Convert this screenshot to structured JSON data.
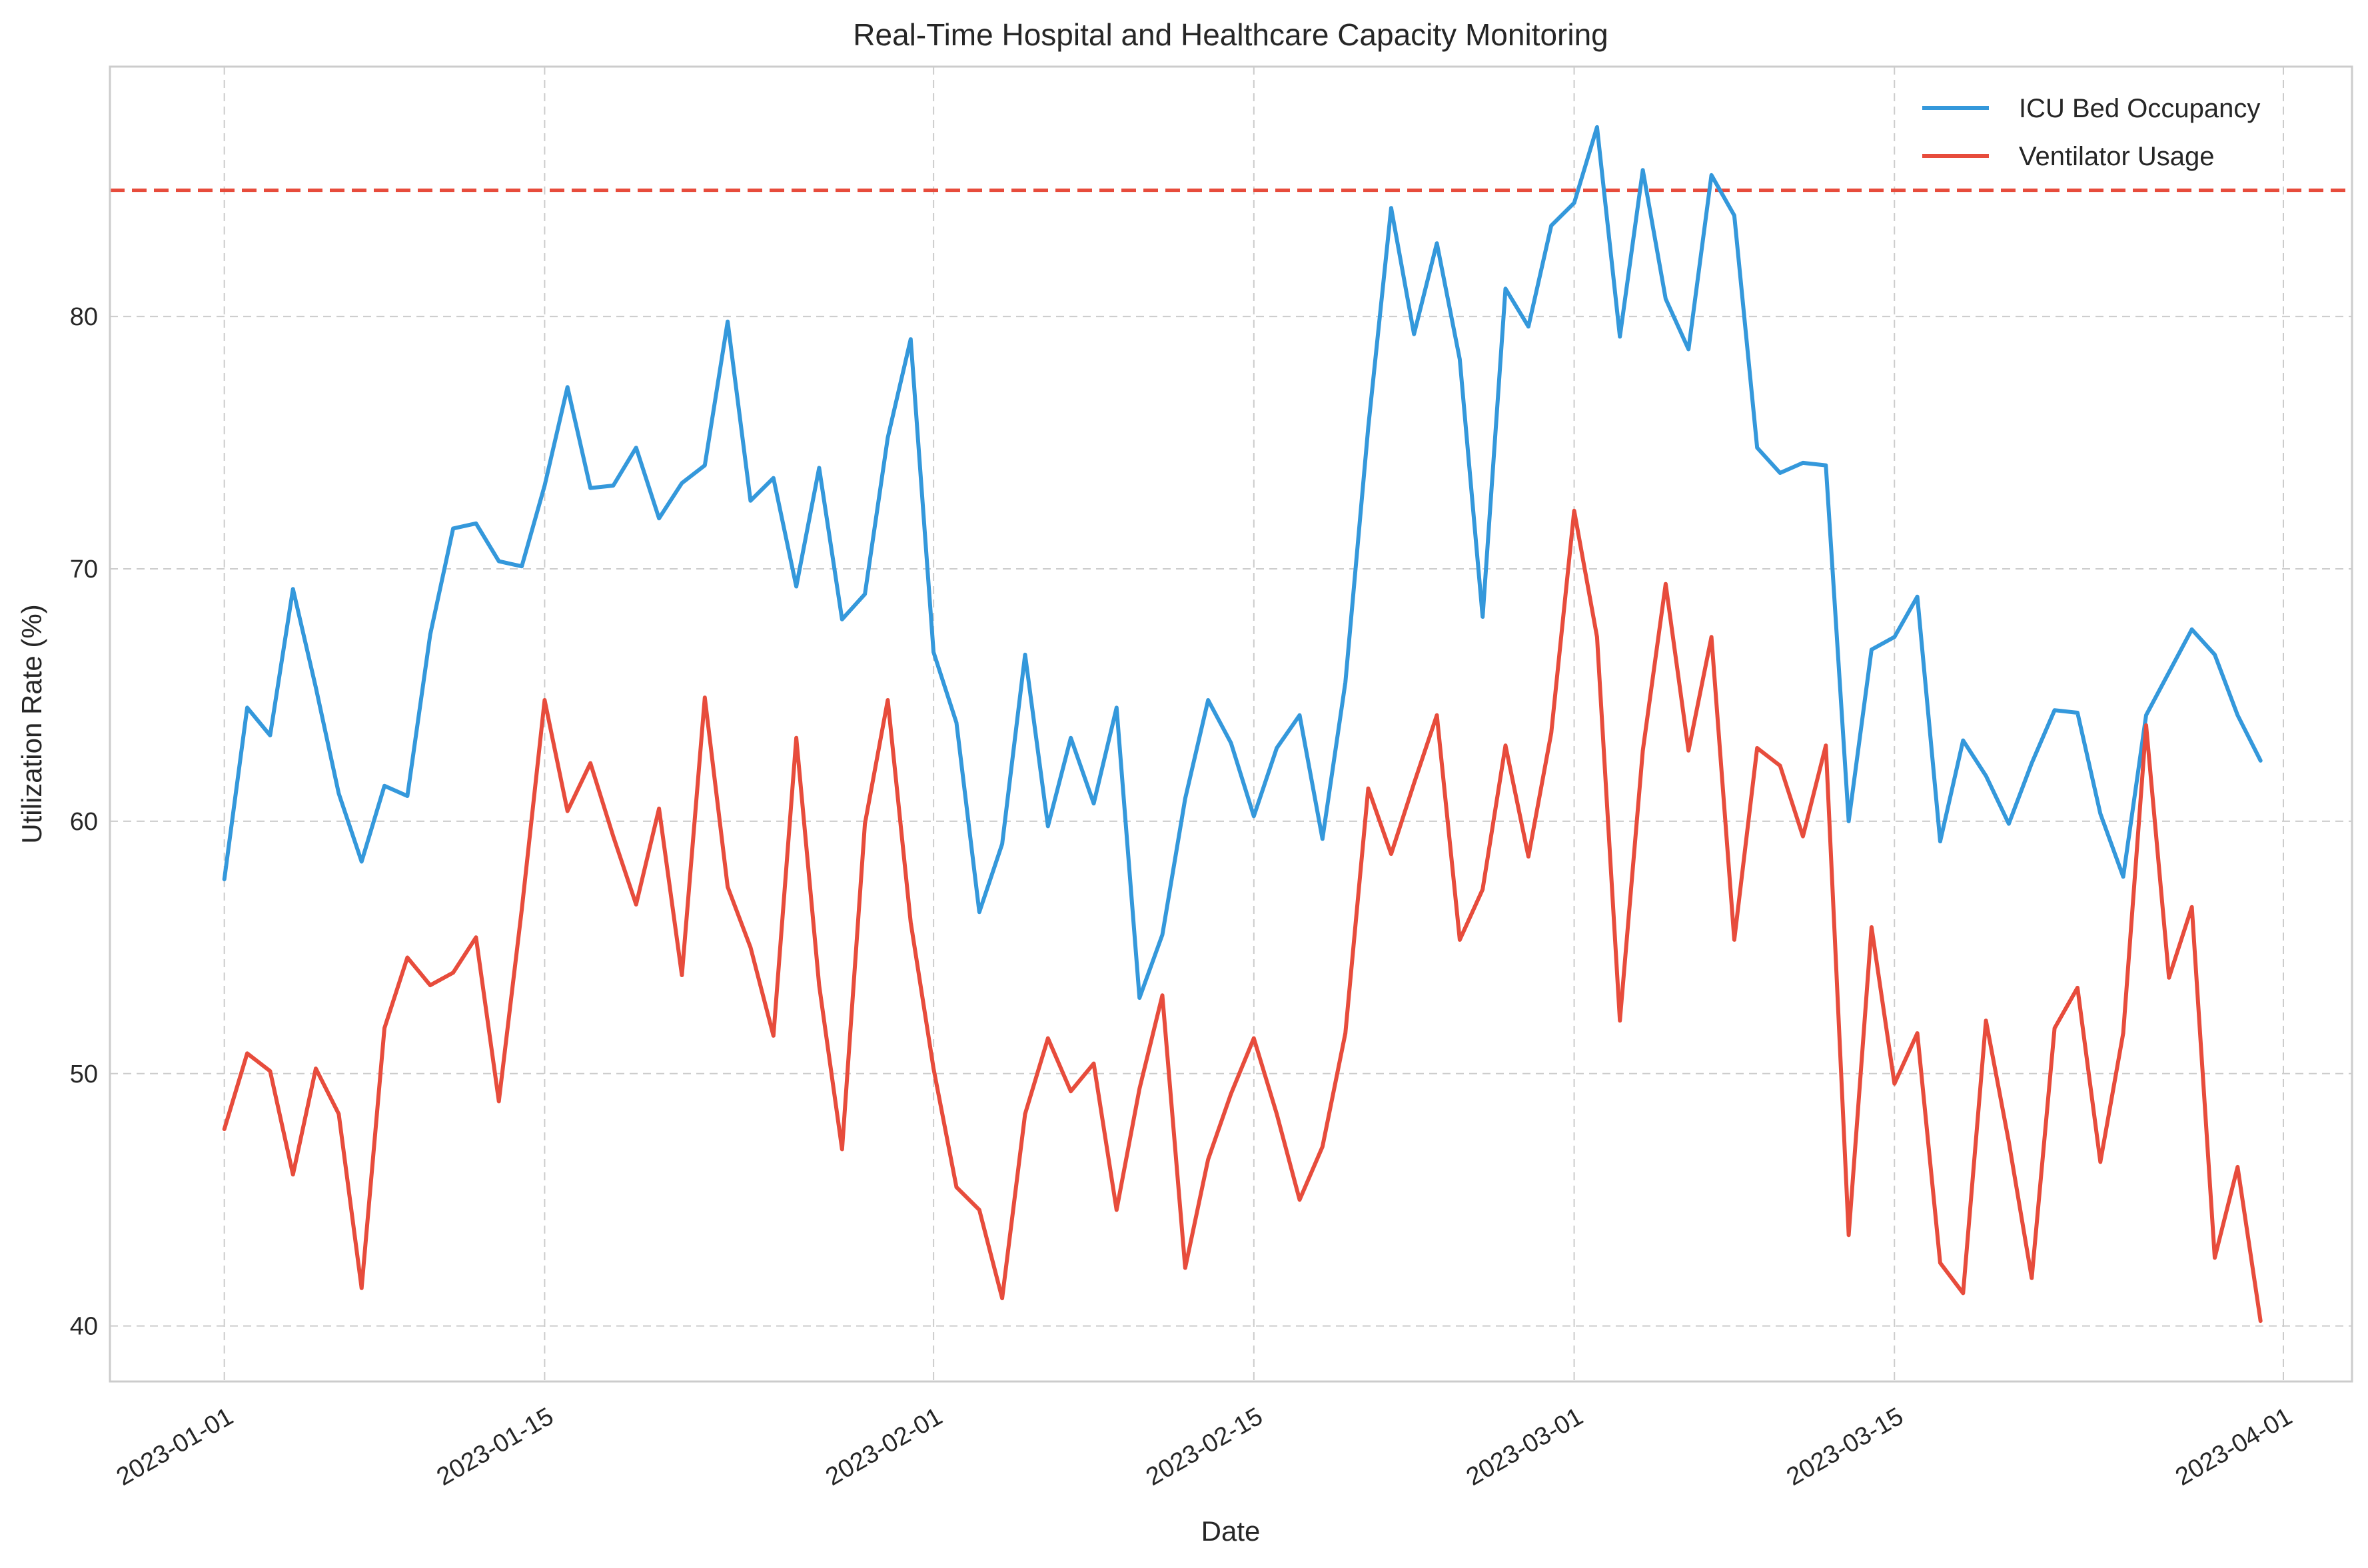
{
  "chart_data": {
    "type": "line",
    "title": "Real-Time Hospital and Healthcare Capacity Monitoring",
    "xlabel": "Date",
    "ylabel": "Utilization Rate (%)",
    "x_start": "2023-01-01",
    "x_step_days": 1,
    "xlim": [
      "2022-12-27",
      "2023-04-04"
    ],
    "ylim": [
      37.8,
      89.9
    ],
    "x_ticks": [
      "2023-01-01",
      "2023-01-15",
      "2023-02-01",
      "2023-02-15",
      "2023-03-01",
      "2023-03-15",
      "2023-04-01"
    ],
    "y_ticks": [
      40,
      50,
      60,
      70,
      80
    ],
    "grid": true,
    "legend_position": "top-right",
    "threshold": {
      "value": 85,
      "color": "#e74c3c",
      "style": "dashed"
    },
    "series": [
      {
        "name": "ICU Bed Occupancy",
        "color": "#3498db",
        "values": [
          57.7,
          64.5,
          63.4,
          69.2,
          65.3,
          61.1,
          58.4,
          61.4,
          61.0,
          67.4,
          71.6,
          71.8,
          70.3,
          70.1,
          73.3,
          77.2,
          73.2,
          73.3,
          74.8,
          72.0,
          73.4,
          74.1,
          79.8,
          72.7,
          73.6,
          69.3,
          74.0,
          68.0,
          69.0,
          75.2,
          79.1,
          66.7,
          63.9,
          56.4,
          59.1,
          66.6,
          59.8,
          63.3,
          60.7,
          64.5,
          53.0,
          55.5,
          60.9,
          64.8,
          63.1,
          60.2,
          62.9,
          64.2,
          59.3,
          65.5,
          75.6,
          84.3,
          79.3,
          82.9,
          78.3,
          68.1,
          81.1,
          79.6,
          83.6,
          84.5,
          87.5,
          79.2,
          85.8,
          80.7,
          78.7,
          85.6,
          84.0,
          74.8,
          73.8,
          74.2,
          74.1,
          60.0,
          66.8,
          67.3,
          68.9,
          59.2,
          63.2,
          61.8,
          59.9,
          62.3,
          64.4,
          64.3,
          60.3,
          57.8,
          64.2,
          65.9,
          67.6,
          66.6,
          64.2,
          62.4
        ]
      },
      {
        "name": "Ventilator Usage",
        "color": "#e74c3c",
        "values": [
          47.8,
          50.8,
          50.1,
          46.0,
          50.2,
          48.4,
          41.5,
          51.8,
          54.6,
          53.5,
          54.0,
          55.4,
          48.9,
          56.5,
          64.8,
          60.4,
          62.3,
          59.4,
          56.7,
          60.5,
          53.9,
          64.9,
          57.4,
          55.0,
          51.5,
          63.3,
          53.5,
          47.0,
          59.9,
          64.8,
          56.0,
          50.2,
          45.5,
          44.6,
          41.1,
          48.4,
          51.4,
          49.3,
          50.4,
          44.6,
          49.4,
          53.1,
          42.3,
          46.6,
          49.2,
          51.4,
          48.4,
          45.0,
          47.1,
          51.6,
          61.3,
          58.7,
          61.5,
          64.2,
          55.3,
          57.3,
          63.0,
          58.6,
          63.5,
          72.3,
          67.3,
          52.1,
          62.8,
          69.4,
          62.8,
          67.3,
          55.3,
          62.9,
          62.2,
          59.4,
          63.0,
          43.6,
          55.8,
          49.6,
          51.6,
          42.5,
          41.3,
          52.1,
          47.3,
          41.9,
          51.8,
          53.4,
          46.5,
          51.6,
          63.8,
          53.8,
          56.6,
          42.7,
          46.3,
          40.2
        ]
      }
    ]
  }
}
